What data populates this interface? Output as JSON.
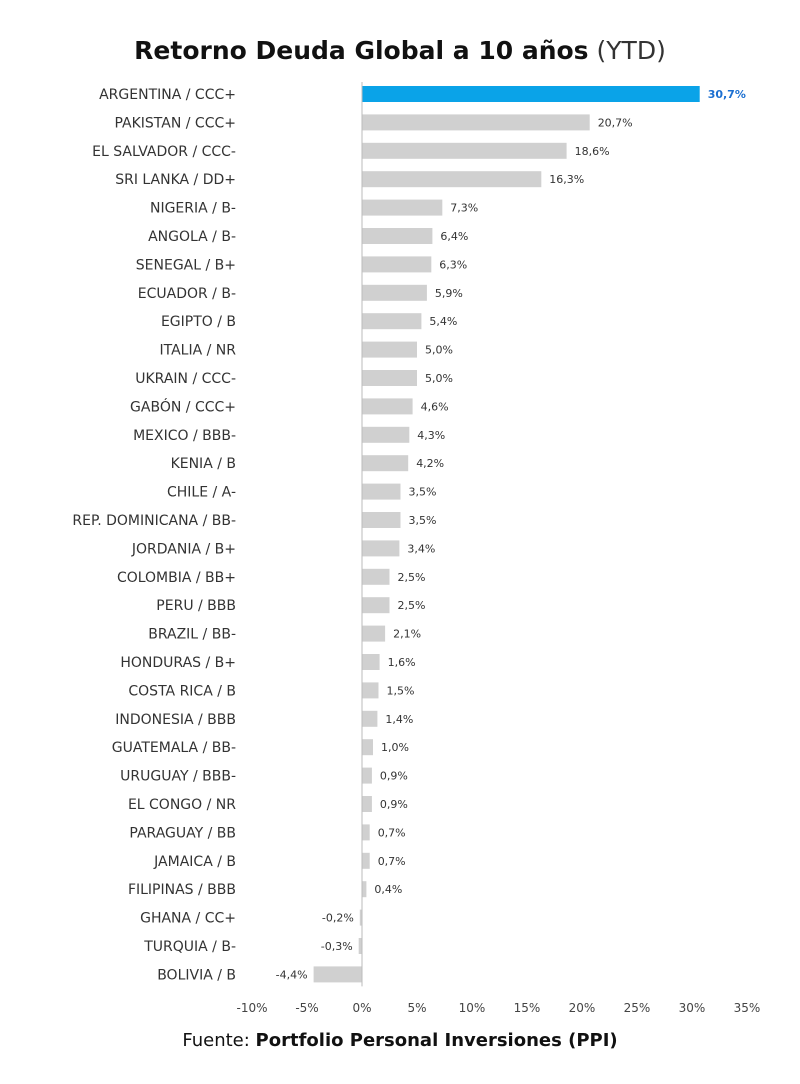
{
  "title": {
    "main": "Retorno Deuda Global a 10 años",
    "suffix": "(YTD)"
  },
  "source": {
    "prefix": "Fuente:",
    "name": "Portfolio Personal Inversiones (PPI)"
  },
  "colors": {
    "highlight": "#0aa3e8",
    "highlight_label": "#1b6fd1",
    "bar": "#d0d0d0",
    "label": "#333333"
  },
  "chart_data": {
    "type": "bar",
    "orientation": "horizontal",
    "title": "Retorno Deuda Global a 10 años (YTD)",
    "xlim": [
      -10,
      35
    ],
    "x_ticks": [
      -10,
      -5,
      0,
      5,
      10,
      15,
      20,
      25,
      30,
      35
    ],
    "x_tick_labels": [
      "-10%",
      "-5%",
      "0%",
      "5%",
      "10%",
      "15%",
      "20%",
      "25%",
      "30%",
      "35%"
    ],
    "grid": false,
    "highlight": "ARGENTINA / CCC+",
    "categories": [
      "ARGENTINA / CCC+",
      "PAKISTAN / CCC+",
      "EL SALVADOR / CCC-",
      "SRI LANKA / DD+",
      "NIGERIA / B-",
      "ANGOLA / B-",
      "SENEGAL / B+",
      "ECUADOR / B-",
      "EGIPTO / B",
      "ITALIA / NR",
      "UKRAIN / CCC-",
      "GABÓN / CCC+",
      "MEXICO / BBB-",
      "KENIA / B",
      "CHILE / A-",
      "REP. DOMINICANA / BB-",
      "JORDANIA / B+",
      "COLOMBIA / BB+",
      "PERU / BBB",
      "BRAZIL / BB-",
      "HONDURAS / B+",
      "COSTA RICA / B",
      "INDONESIA / BBB",
      "GUATEMALA / BB-",
      "URUGUAY / BBB-",
      "EL CONGO / NR",
      "PARAGUAY / BB",
      "JAMAICA / B",
      "FILIPINAS / BBB",
      "GHANA / CC+",
      "TURQUIA / B-",
      "BOLIVIA / B"
    ],
    "values": [
      30.7,
      20.7,
      18.6,
      16.3,
      7.3,
      6.4,
      6.3,
      5.9,
      5.4,
      5.0,
      5.0,
      4.6,
      4.3,
      4.2,
      3.5,
      3.5,
      3.4,
      2.5,
      2.5,
      2.1,
      1.6,
      1.5,
      1.4,
      1.0,
      0.9,
      0.9,
      0.7,
      0.7,
      0.4,
      -0.2,
      -0.3,
      -4.4
    ],
    "value_labels": [
      "30,7%",
      "20,7%",
      "18,6%",
      "16,3%",
      "7,3%",
      "6,4%",
      "6,3%",
      "5,9%",
      "5,4%",
      "5,0%",
      "5,0%",
      "4,6%",
      "4,3%",
      "4,2%",
      "3,5%",
      "3,5%",
      "3,4%",
      "2,5%",
      "2,5%",
      "2,1%",
      "1,6%",
      "1,5%",
      "1,4%",
      "1,0%",
      "0,9%",
      "0,9%",
      "0,7%",
      "0,7%",
      "0,4%",
      "-0,2%",
      "-0,3%",
      "-4,4%"
    ]
  }
}
